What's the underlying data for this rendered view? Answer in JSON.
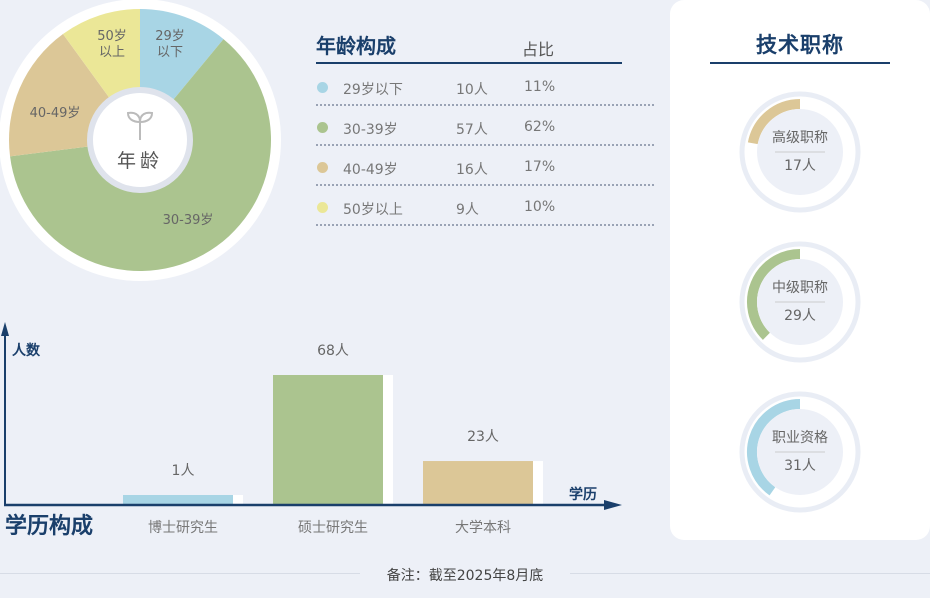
{
  "chart_data": [
    {
      "type": "pie",
      "title": "年龄构成",
      "center_label": "年龄",
      "column_header": "占比",
      "categories": [
        "29岁以下",
        "30-39岁",
        "40-49岁",
        "50岁以上"
      ],
      "slice_labels": [
        "29岁\n以下",
        "30-39岁",
        "40-49岁",
        "50岁\n以上"
      ],
      "counts": [
        "10人",
        "57人",
        "16人",
        "9人"
      ],
      "percent_labels": [
        "11%",
        "62%",
        "17%",
        "10%"
      ],
      "values": [
        11,
        62,
        17,
        10
      ],
      "colors": [
        "#a8d5e5",
        "#abc48f",
        "#dcc797",
        "#ebe797"
      ]
    },
    {
      "type": "bar",
      "title": "学历构成",
      "ylabel": "人数",
      "xlabel": "学历",
      "categories": [
        "博士研究生",
        "硕士研究生",
        "大学本科"
      ],
      "values": [
        1,
        68,
        23
      ],
      "data_labels": [
        "1人",
        "68人",
        "23人"
      ],
      "colors": [
        "#a8d5e5",
        "#abc48f",
        "#dcc797"
      ]
    },
    {
      "type": "ring",
      "title": "技术职称",
      "categories": [
        "高级职称",
        "中级职称",
        "职业资格"
      ],
      "values": [
        17,
        29,
        31
      ],
      "data_labels": [
        "17人",
        "29人",
        "31人"
      ],
      "colors": [
        "#dcc797",
        "#abc48f",
        "#a8d5e5"
      ]
    }
  ],
  "note": "备注：截至2025年8月底",
  "colors": {
    "navy": "#1a3f6b",
    "background": "#edf0f7"
  },
  "icons": {
    "center": "sprout-icon"
  }
}
